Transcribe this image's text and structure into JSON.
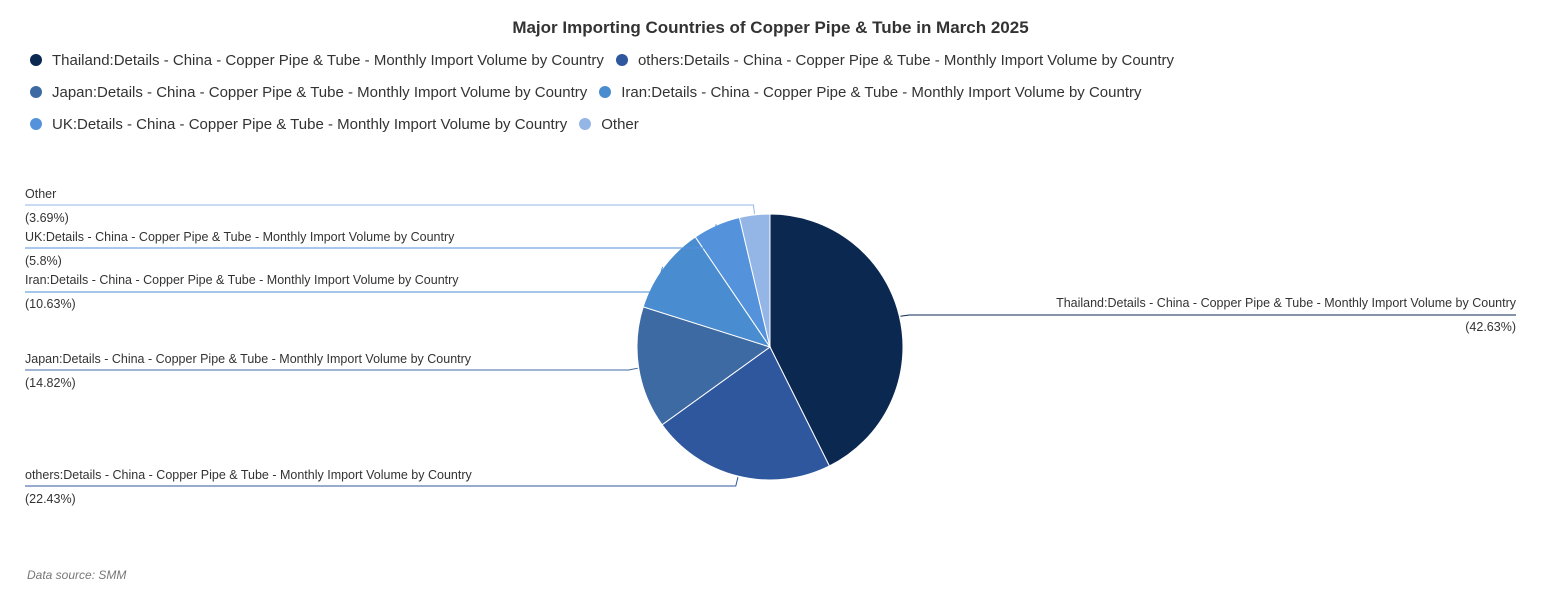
{
  "chart_data": {
    "type": "pie",
    "title": "Major Importing Countries of Copper Pipe & Tube in March 2025",
    "slices": [
      {
        "name": "Thailand:Details - China - Copper Pipe & Tube - Monthly Import Volume by Country",
        "value": 42.63,
        "label": "(42.63%)",
        "color": "#0b2850"
      },
      {
        "name": "others:Details - China - Copper Pipe & Tube - Monthly Import Volume by Country",
        "value": 22.43,
        "label": "(22.43%)",
        "color": "#2f579e"
      },
      {
        "name": "Japan:Details - China - Copper Pipe & Tube - Monthly Import Volume by Country",
        "value": 14.82,
        "label": "(14.82%)",
        "color": "#3e6aa4"
      },
      {
        "name": "Iran:Details - China - Copper Pipe & Tube - Monthly Import Volume by Country",
        "value": 10.63,
        "label": "(10.63%)",
        "color": "#4a8cd0"
      },
      {
        "name": "UK:Details - China - Copper Pipe & Tube - Monthly Import Volume by Country",
        "value": 5.8,
        "label": "(5.8%)",
        "color": "#5592dc"
      },
      {
        "name": "Other",
        "value": 3.69,
        "label": "(3.69%)",
        "color": "#93b6e6"
      }
    ],
    "legend_placement": "top-left"
  },
  "legend_rows": [
    [
      0,
      1
    ],
    [
      2,
      3
    ],
    [
      4,
      5
    ]
  ],
  "source_text": "Data source:  SMM"
}
